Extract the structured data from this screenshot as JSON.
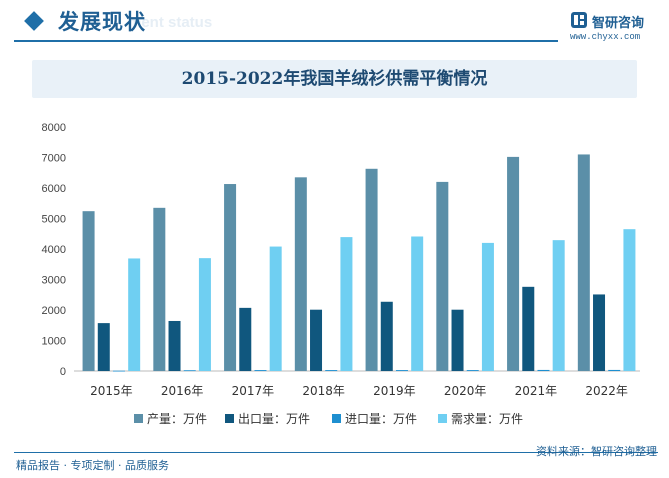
{
  "header": {
    "section_title": "发展现状",
    "section_sub": "ment status"
  },
  "logo": {
    "name": "智研咨询",
    "url": "www.chyxx.com"
  },
  "footer": {
    "left": "精品报告 · 专项定制 · 品质服务",
    "right": "资料来源：智研咨询整理"
  },
  "colors": {
    "primary": "#1f5f93",
    "series": [
      "#5b8fa8",
      "#10577e",
      "#1e8fd0",
      "#6fcff2"
    ]
  },
  "chart_data": {
    "type": "bar",
    "title": "2015-2022年我国羊绒衫供需平衡情况",
    "categories": [
      "2015年",
      "2016年",
      "2017年",
      "2018年",
      "2019年",
      "2020年",
      "2021年",
      "2022年"
    ],
    "series": [
      {
        "name": "产量：万件",
        "values": [
          5240,
          5350,
          6130,
          6350,
          6630,
          6200,
          7020,
          7100
        ]
      },
      {
        "name": "出口量：万件",
        "values": [
          1570,
          1640,
          2070,
          2010,
          2270,
          2010,
          2760,
          2510
        ]
      },
      {
        "name": "进口量：万件",
        "values": [
          10,
          25,
          30,
          30,
          30,
          30,
          35,
          35
        ]
      },
      {
        "name": "需求量：万件",
        "values": [
          3690,
          3700,
          4080,
          4390,
          4410,
          4200,
          4290,
          4650
        ]
      }
    ],
    "ylim": [
      0,
      8000
    ],
    "yticks": [
      "0",
      "1000",
      "2000",
      "3000",
      "4000",
      "5000",
      "6000",
      "7000",
      "8000"
    ],
    "xlabel": "",
    "ylabel": "",
    "grid": false,
    "legend": "bottom"
  }
}
